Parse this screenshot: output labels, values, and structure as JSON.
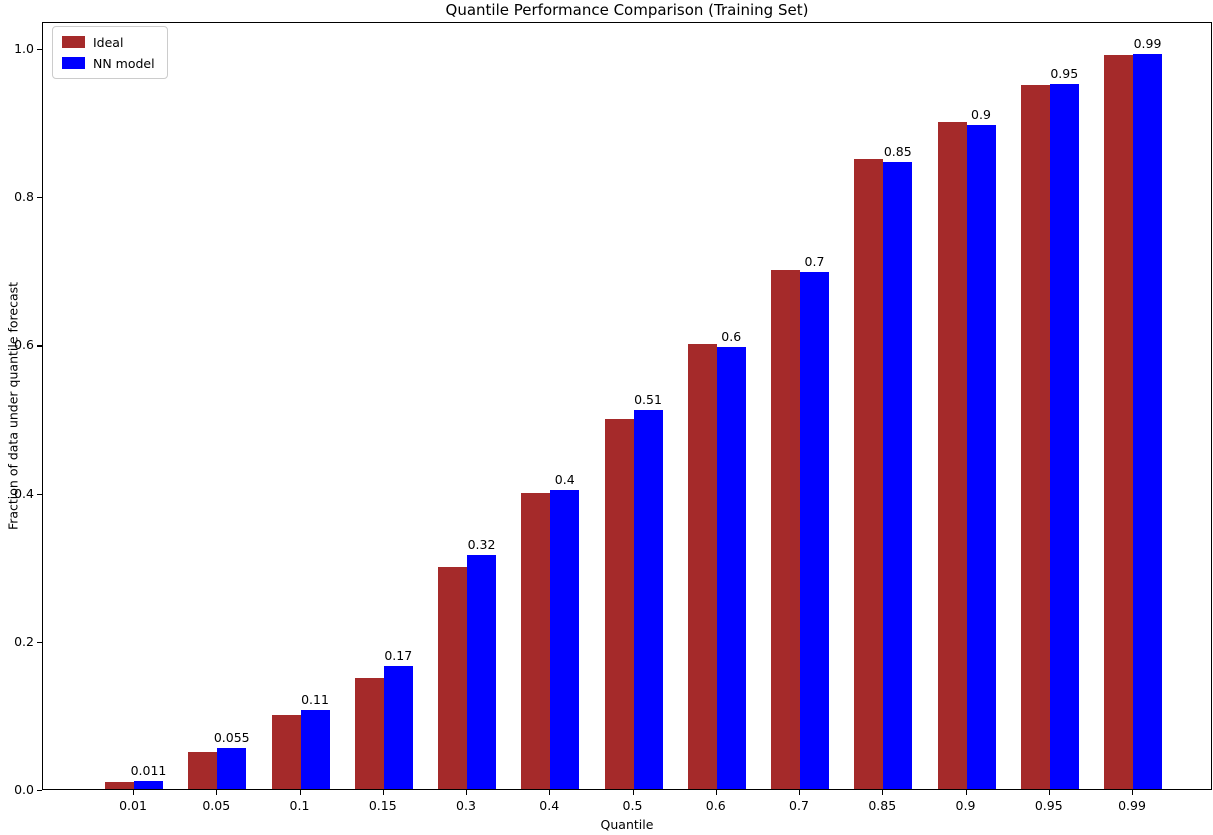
{
  "chart_data": {
    "type": "bar",
    "title": "Quantile Performance Comparison (Training Set)",
    "xlabel": "Quantile",
    "ylabel": "Fraction of data under quantile forecast",
    "categories": [
      "0.01",
      "0.05",
      "0.1",
      "0.15",
      "0.3",
      "0.4",
      "0.5",
      "0.6",
      "0.7",
      "0.85",
      "0.9",
      "0.95",
      "0.99"
    ],
    "series": [
      {
        "name": "Ideal",
        "color": "#a52a2a",
        "values": [
          0.01,
          0.05,
          0.1,
          0.15,
          0.3,
          0.4,
          0.5,
          0.6,
          0.7,
          0.85,
          0.9,
          0.95,
          0.99
        ]
      },
      {
        "name": "NN model",
        "color": "#0000ff",
        "values": [
          0.011,
          0.055,
          0.107,
          0.166,
          0.316,
          0.403,
          0.512,
          0.597,
          0.698,
          0.846,
          0.896,
          0.951,
          0.992
        ]
      }
    ],
    "bar_labels": [
      "0.011",
      "0.055",
      "0.11",
      "0.17",
      "0.32",
      "0.4",
      "0.51",
      "0.6",
      "0.7",
      "0.85",
      "0.9",
      "0.95",
      "0.99"
    ],
    "yticks": [
      "0.0",
      "0.2",
      "0.4",
      "0.6",
      "0.8",
      "1.0"
    ],
    "ylim": [
      0,
      1.0365
    ],
    "legend_position": "upper left",
    "grid": false,
    "axis_color": "#000000",
    "background_color": "#ffffff"
  }
}
